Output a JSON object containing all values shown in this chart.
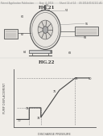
{
  "bg_color": "#f0ede8",
  "header_text": "Patent Application Publication",
  "header_date": "Aug. 4, 2014",
  "header_sheet": "Sheet 14 of 14",
  "header_right": "US 2014/0161111 A1",
  "fig21_title": "FIG.21",
  "fig22_title": "FIG.22",
  "fig22_xlabel": "DISCHARGE PRESSURE",
  "fig22_ylabel": "PUMP DISPLACEMENT",
  "line_color": "#555555",
  "text_color": "#333333"
}
